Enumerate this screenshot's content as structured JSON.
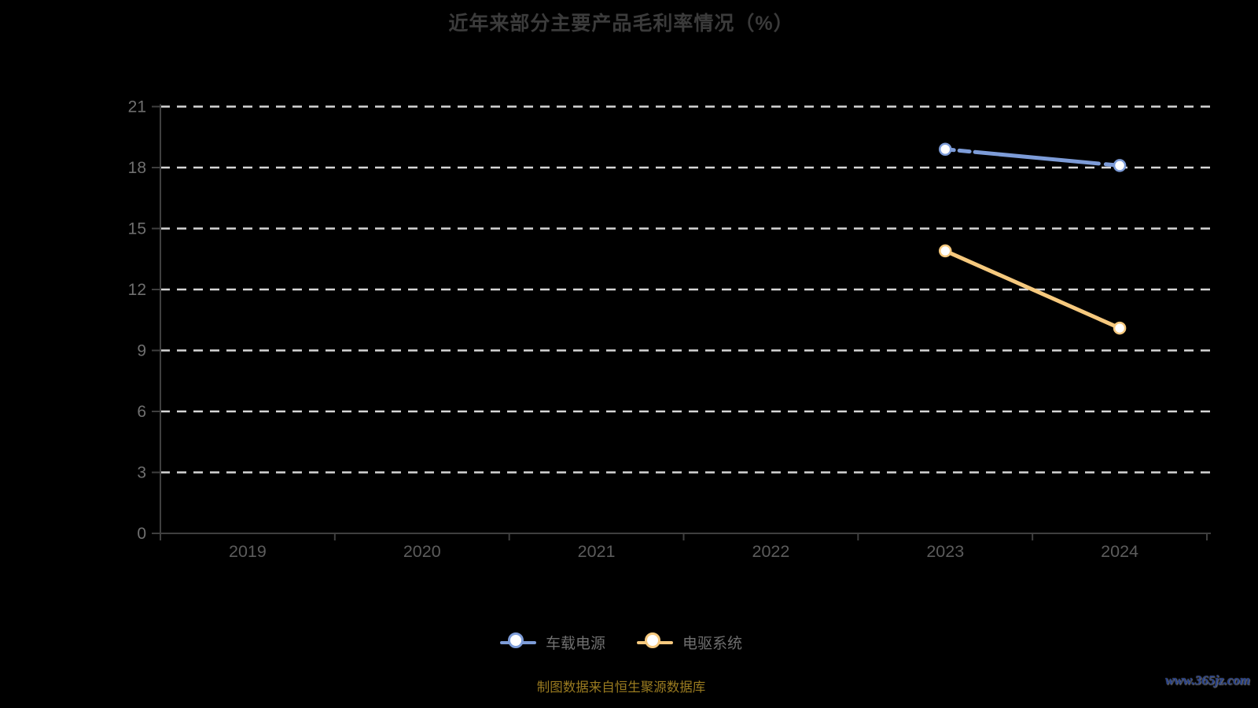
{
  "page": {
    "title": "近年来部分主要产品毛利率情况（%）",
    "source_note": "制图数据来自恒生聚源数据库",
    "watermark": "www.365jz.com"
  },
  "colors": {
    "background": "#000000",
    "title_text": "#3b3b3b",
    "gridline": "#d6d6d6",
    "axis_line": "#3f3f3f",
    "y_tick_label": "#6f6f6f",
    "x_tick_label": "#5c5c5c",
    "legend_text": "#6f6f6f",
    "marker_fill": "#ffffff",
    "source_note_text": "#9a7b20",
    "watermark_text": "#26418b",
    "series_blue": "#7d9cd8",
    "series_yellow": "#f6c97e"
  },
  "chart_data": {
    "type": "line",
    "title": "近年来部分主要产品毛利率情况（%）",
    "categories": [
      "2019",
      "2020",
      "2021",
      "2022",
      "2023",
      "2024"
    ],
    "series": [
      {
        "name": "车载电源",
        "slug": "vehicle-power-supply",
        "color": "#7d9cd8",
        "values": [
          null,
          null,
          null,
          null,
          18.9,
          18.1
        ]
      },
      {
        "name": "电驱系统",
        "slug": "electric-drive-system",
        "color": "#f6c97e",
        "values": [
          null,
          null,
          null,
          null,
          13.9,
          10.1
        ]
      }
    ],
    "xlabel": "",
    "ylabel": "",
    "y_axis": {
      "min": 0,
      "max": 21,
      "interval": 3,
      "ticks": [
        0,
        3,
        6,
        9,
        12,
        15,
        18,
        21
      ]
    },
    "grid": "horizontal white dashed lines, black background",
    "legend_position": "bottom-center",
    "legend_entries": [
      "车载电源",
      "电驱系统"
    ]
  }
}
